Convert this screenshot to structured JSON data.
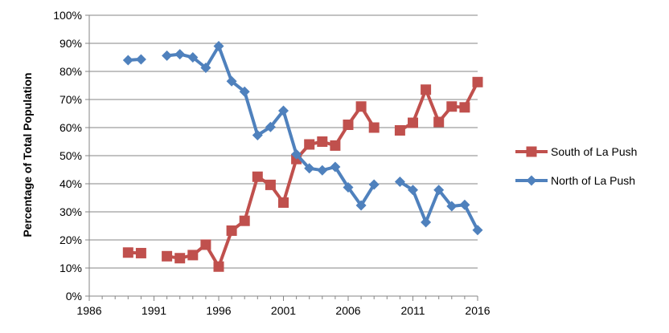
{
  "chart_data": {
    "type": "line",
    "title": "",
    "xlabel": "",
    "ylabel": "Percentage of Total Population",
    "xlim": [
      1986,
      2016
    ],
    "ylim": [
      0,
      100
    ],
    "x_ticks": [
      "1986",
      "1991",
      "1996",
      "2001",
      "2006",
      "2011",
      "2016"
    ],
    "y_ticks": [
      "0%",
      "10%",
      "20%",
      "30%",
      "40%",
      "50%",
      "60%",
      "70%",
      "80%",
      "90%",
      "100%"
    ],
    "grid": "horizontal",
    "legend_position": "right",
    "series": [
      {
        "name": "South of La Push",
        "color": "#C0504D",
        "marker": "square",
        "segments": [
          [
            [
              1989,
              15.5
            ],
            [
              1990,
              15.3
            ]
          ],
          [
            [
              1992,
              14.2
            ],
            [
              1993,
              13.5
            ],
            [
              1994,
              14.6
            ],
            [
              1995,
              18.3
            ],
            [
              1996,
              10.5
            ],
            [
              1997,
              23.3
            ],
            [
              1998,
              26.8
            ],
            [
              1999,
              42.5
            ],
            [
              2000,
              39.6
            ],
            [
              2001,
              33.3
            ],
            [
              2002,
              48.8
            ],
            [
              2003,
              54.0
            ],
            [
              2004,
              55.0
            ],
            [
              2005,
              53.6
            ],
            [
              2006,
              61.0
            ],
            [
              2007,
              67.5
            ],
            [
              2008,
              60.0
            ]
          ],
          [
            [
              2010,
              59.0
            ],
            [
              2011,
              61.7
            ],
            [
              2012,
              73.5
            ],
            [
              2013,
              62.0
            ],
            [
              2014,
              67.5
            ],
            [
              2015,
              67.2
            ],
            [
              2016,
              76.2
            ]
          ]
        ]
      },
      {
        "name": "North of La Push",
        "color": "#4F81BD",
        "marker": "diamond",
        "segments": [
          [
            [
              1989,
              84.0
            ],
            [
              1990,
              84.3
            ]
          ],
          [
            [
              1992,
              85.6
            ],
            [
              1993,
              86.1
            ],
            [
              1994,
              85.0
            ],
            [
              1995,
              81.3
            ],
            [
              1996,
              89.0
            ],
            [
              1997,
              76.5
            ],
            [
              1998,
              72.8
            ],
            [
              1999,
              57.3
            ],
            [
              2000,
              60.2
            ],
            [
              2001,
              66.0
            ],
            [
              2002,
              50.5
            ],
            [
              2003,
              45.5
            ],
            [
              2004,
              44.8
            ],
            [
              2005,
              46.0
            ],
            [
              2006,
              38.7
            ],
            [
              2007,
              32.3
            ],
            [
              2008,
              39.7
            ]
          ],
          [
            [
              2010,
              40.7
            ],
            [
              2011,
              37.8
            ],
            [
              2012,
              26.3
            ],
            [
              2013,
              37.8
            ],
            [
              2014,
              32.0
            ],
            [
              2015,
              32.5
            ],
            [
              2016,
              23.5
            ]
          ]
        ]
      }
    ]
  }
}
